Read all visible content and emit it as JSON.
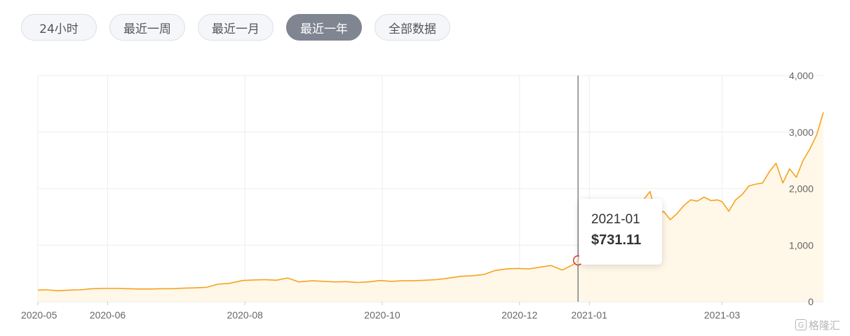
{
  "range_selector": {
    "options": [
      {
        "label": "24小时",
        "name": "range-24h-button",
        "active": false
      },
      {
        "label": "最近一周",
        "name": "range-week-button",
        "active": false
      },
      {
        "label": "最近一月",
        "name": "range-month-button",
        "active": false
      },
      {
        "label": "最近一年",
        "name": "range-year-button",
        "active": true
      },
      {
        "label": "全部数据",
        "name": "range-all-button",
        "active": false
      }
    ]
  },
  "tooltip": {
    "date": "2021-01",
    "value": "$731.11"
  },
  "watermark": {
    "text": "格隆汇"
  },
  "colors": {
    "line": "#f5a31e",
    "area": "#fff7e8",
    "grid": "#eeeeee",
    "crosshair": "#666666",
    "marker": "#d23c3c",
    "axis_text": "#666666",
    "button_active_bg": "#7f8591"
  },
  "chart_data": {
    "type": "area",
    "title": "",
    "xlabel": "",
    "ylabel": "",
    "x_axis": {
      "type": "date",
      "range": [
        "2020-05-01",
        "2021-04-15"
      ],
      "ticks": [
        {
          "date": "2020-05-01",
          "label": "2020-05"
        },
        {
          "date": "2020-06-01",
          "label": "2020-06"
        },
        {
          "date": "2020-08-01",
          "label": "2020-08"
        },
        {
          "date": "2020-10-01",
          "label": "2020-10"
        },
        {
          "date": "2020-12-01",
          "label": "2020-12"
        },
        {
          "date": "2021-01-01",
          "label": "2021-01"
        },
        {
          "date": "2021-03-01",
          "label": "2021-03"
        }
      ]
    },
    "y_axis": {
      "position": "right",
      "range": [
        0,
        4000
      ],
      "ticks": [
        {
          "value": 0,
          "label": "0"
        },
        {
          "value": 1000,
          "label": "1,000"
        },
        {
          "value": 2000,
          "label": "2,000"
        },
        {
          "value": 3000,
          "label": "3,000"
        },
        {
          "value": 4000,
          "label": "4,000"
        }
      ]
    },
    "grid": true,
    "legend": "none",
    "highlight": {
      "date": "2020-12-27",
      "value": 731.11
    },
    "series": [
      {
        "x": [
          "2020-05-01",
          "2020-05-05",
          "2020-05-10",
          "2020-05-15",
          "2020-05-20",
          "2020-05-25",
          "2020-05-31",
          "2020-06-05",
          "2020-06-10",
          "2020-06-15",
          "2020-06-20",
          "2020-06-25",
          "2020-06-30",
          "2020-07-05",
          "2020-07-10",
          "2020-07-15",
          "2020-07-20",
          "2020-07-25",
          "2020-07-31",
          "2020-08-05",
          "2020-08-10",
          "2020-08-15",
          "2020-08-20",
          "2020-08-25",
          "2020-08-31",
          "2020-09-05",
          "2020-09-10",
          "2020-09-15",
          "2020-09-20",
          "2020-09-25",
          "2020-09-30",
          "2020-10-05",
          "2020-10-10",
          "2020-10-15",
          "2020-10-20",
          "2020-10-25",
          "2020-10-31",
          "2020-11-05",
          "2020-11-10",
          "2020-11-15",
          "2020-11-20",
          "2020-11-25",
          "2020-11-30",
          "2020-12-05",
          "2020-12-10",
          "2020-12-15",
          "2020-12-20",
          "2020-12-25",
          "2020-12-27",
          "2020-12-30",
          "2021-01-01",
          "2021-01-04",
          "2021-01-07",
          "2021-01-10",
          "2021-01-13",
          "2021-01-16",
          "2021-01-19",
          "2021-01-22",
          "2021-01-25",
          "2021-01-28",
          "2021-01-31",
          "2021-02-03",
          "2021-02-06",
          "2021-02-09",
          "2021-02-12",
          "2021-02-15",
          "2021-02-18",
          "2021-02-21",
          "2021-02-24",
          "2021-02-27",
          "2021-03-01",
          "2021-03-04",
          "2021-03-07",
          "2021-03-10",
          "2021-03-13",
          "2021-03-16",
          "2021-03-19",
          "2021-03-22",
          "2021-03-25",
          "2021-03-28",
          "2021-03-31",
          "2021-04-03",
          "2021-04-06",
          "2021-04-09",
          "2021-04-12",
          "2021-04-15"
        ],
        "values": [
          205,
          210,
          195,
          205,
          210,
          230,
          235,
          235,
          230,
          225,
          225,
          230,
          230,
          240,
          245,
          255,
          310,
          325,
          375,
          385,
          390,
          380,
          420,
          350,
          370,
          360,
          350,
          355,
          340,
          350,
          375,
          360,
          370,
          370,
          380,
          390,
          420,
          450,
          460,
          480,
          550,
          580,
          590,
          580,
          610,
          640,
          560,
          660,
          731,
          1050,
          1150,
          1300,
          1100,
          1200,
          1250,
          1500,
          1650,
          1400,
          1800,
          1950,
          1500,
          1600,
          1450,
          1560,
          1700,
          1800,
          1780,
          1850,
          1790,
          1800,
          1770,
          1600,
          1800,
          1900,
          2050,
          2080,
          2100,
          2300,
          2450,
          2100,
          2350,
          2200,
          2500,
          2700,
          2950,
          3350
        ]
      }
    ]
  }
}
